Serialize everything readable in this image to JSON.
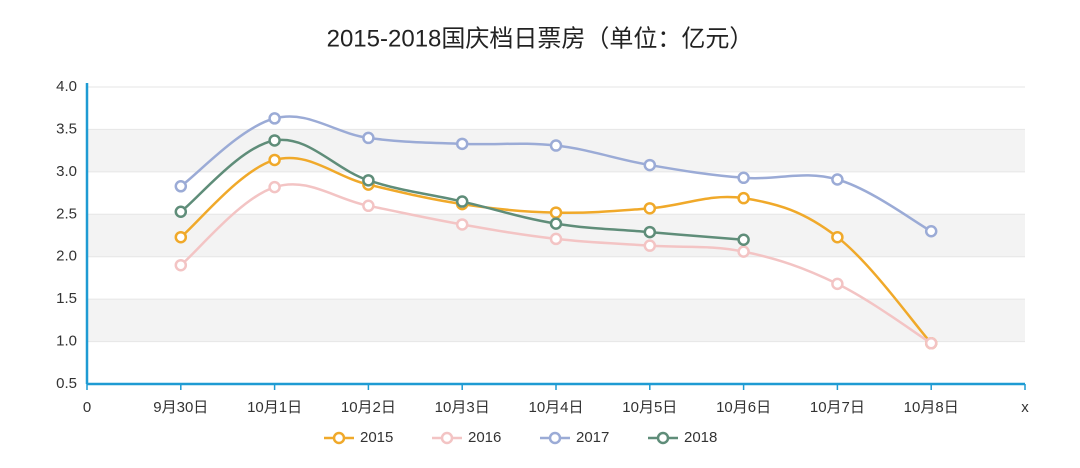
{
  "chart_data": {
    "type": "line",
    "title": "2015-2018国庆档日票房（单位：亿元）",
    "categories": [
      "0",
      "9月30日",
      "10月1日",
      "10月2日",
      "10月3日",
      "10月4日",
      "10月5日",
      "10月6日",
      "10月7日",
      "10月8日",
      "x"
    ],
    "series": [
      {
        "name": "2015",
        "color": "#f0a92a",
        "values": [
          null,
          2.23,
          3.14,
          2.85,
          2.62,
          2.52,
          2.57,
          2.69,
          2.23,
          0.98,
          null
        ]
      },
      {
        "name": "2016",
        "color": "#f3c4c4",
        "values": [
          null,
          1.9,
          2.82,
          2.6,
          2.38,
          2.21,
          2.13,
          2.06,
          1.68,
          0.98,
          null
        ]
      },
      {
        "name": "2017",
        "color": "#9babd6",
        "values": [
          null,
          2.83,
          3.63,
          3.4,
          3.33,
          3.31,
          3.08,
          2.93,
          2.91,
          2.3,
          null
        ]
      },
      {
        "name": "2018",
        "color": "#5f8d79",
        "values": [
          null,
          2.53,
          3.37,
          2.9,
          2.65,
          2.39,
          2.29,
          2.2,
          null,
          null,
          null
        ]
      }
    ],
    "ylim": [
      0.5,
      4.0
    ],
    "yticks": [
      0.5,
      {
        "value": 1,
        "label": "1.0"
      },
      1.5,
      {
        "value": 2,
        "label": "2.0"
      },
      2.5,
      {
        "value": 3,
        "label": "3.0"
      },
      3.5,
      {
        "value": 4,
        "label": "4.0"
      }
    ],
    "grid": true,
    "legend": "bottom"
  }
}
